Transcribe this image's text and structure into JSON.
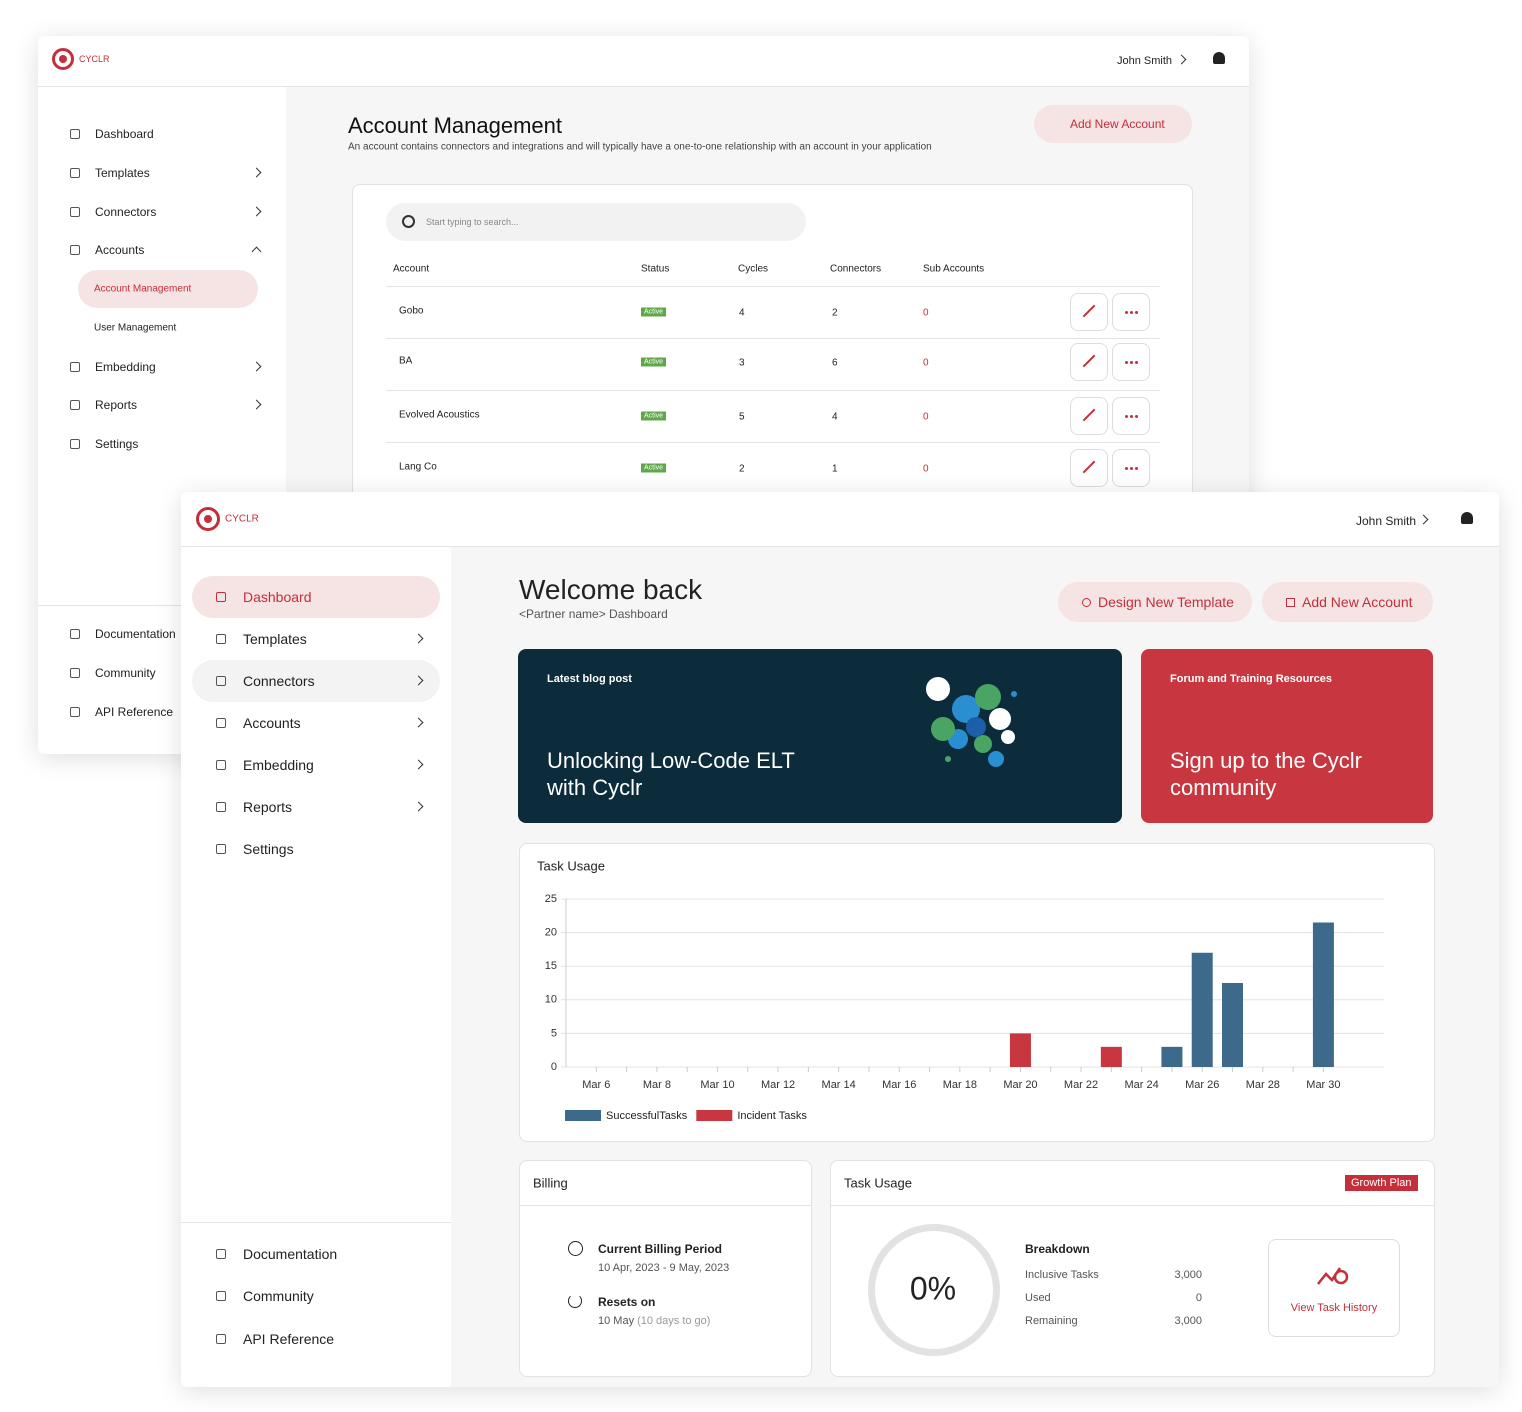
{
  "back_window": {
    "logo": "CYCLR",
    "user": "John Smith",
    "nav": [
      "Dashboard",
      "Templates",
      "Connectors",
      "Accounts"
    ],
    "sub_nav": [
      "Account Management",
      "User Management"
    ],
    "nav_after": [
      "Embedding",
      "Reports",
      "Settings"
    ],
    "footer_nav": [
      "Documentation",
      "Community",
      "API Reference"
    ],
    "title": "Account Management",
    "subtitle": "An account contains connectors and integrations and will typically have a one-to-one relationship with an account in your application",
    "add_button": "Add New Account",
    "search_placeholder": "Start typing to search...",
    "table": {
      "headers": [
        "Account",
        "Status",
        "Cycles",
        "Connectors",
        "Sub Accounts"
      ],
      "rows": [
        [
          "Gobo",
          "Active",
          4,
          2,
          0
        ],
        [
          "BA",
          "Active",
          3,
          6,
          0
        ],
        [
          "Evolved Acoustics",
          "Active",
          5,
          4,
          0
        ],
        [
          "Lang Co",
          "Active",
          2,
          1,
          0
        ]
      ]
    }
  },
  "front_window": {
    "logo": "CYCLR",
    "user": "John Smith",
    "nav": [
      "Dashboard",
      "Templates",
      "Connectors",
      "Accounts",
      "Embedding",
      "Reports",
      "Settings"
    ],
    "footer_nav": [
      "Documentation",
      "Community",
      "API Reference"
    ],
    "title": "Welcome back",
    "subtitle": "<Partner name> Dashboard",
    "buttons": [
      "Design New Template",
      "Add New Account"
    ],
    "blog": {
      "label": "Latest blog post",
      "title": "Unlocking Low-Code ELT with Cyclr"
    },
    "forum": {
      "label": "Forum and Training Resources",
      "title": "Sign up to the Cyclr community"
    },
    "task_usage_chart": {
      "type": "bar",
      "title": "Task Usage",
      "categories": [
        "Mar 6",
        null,
        "Mar 8",
        null,
        "Mar 10",
        null,
        "Mar 12",
        null,
        "Mar 14",
        null,
        "Mar 16",
        null,
        "Mar 18",
        null,
        "Mar 20",
        null,
        "Mar 22",
        null,
        "Mar 24",
        null,
        "Mar 26",
        null,
        "Mar 28",
        null,
        "Mar 30"
      ],
      "series": [
        {
          "name": "SuccessfulTasks",
          "color": "#3d6a8b",
          "values": [
            0,
            0,
            0,
            0,
            0,
            0,
            0,
            0,
            0,
            0,
            0,
            0,
            0,
            0,
            0,
            0,
            0,
            0,
            0,
            3,
            17,
            12.5,
            0,
            0,
            21.5
          ]
        },
        {
          "name": "Incident Tasks",
          "color": "#c8373f",
          "values": [
            0,
            0,
            0,
            0,
            0,
            0,
            0,
            0,
            0,
            0,
            0,
            0,
            0,
            0,
            5,
            0,
            0,
            3,
            0,
            0,
            0,
            0,
            0,
            0,
            0
          ]
        }
      ],
      "ylim": [
        0,
        25
      ],
      "yticks": [
        0,
        5,
        10,
        15,
        20,
        25
      ],
      "grid": true
    },
    "billing": {
      "title": "Billing",
      "period_label": "Current Billing Period",
      "period": "10 Apr, 2023 - 9 May, 2023",
      "resets_label": "Resets on",
      "resets_date": "10 May",
      "resets_note": "(10 days to go)"
    },
    "task_usage_panel": {
      "title": "Task Usage",
      "plan": "Growth Plan",
      "percent": "0%",
      "breakdown_title": "Breakdown",
      "rows": [
        [
          "Inclusive Tasks",
          "3,000"
        ],
        [
          "Used",
          "0"
        ],
        [
          "Remaining",
          "3,000"
        ]
      ],
      "history_button": "View Task History"
    }
  }
}
